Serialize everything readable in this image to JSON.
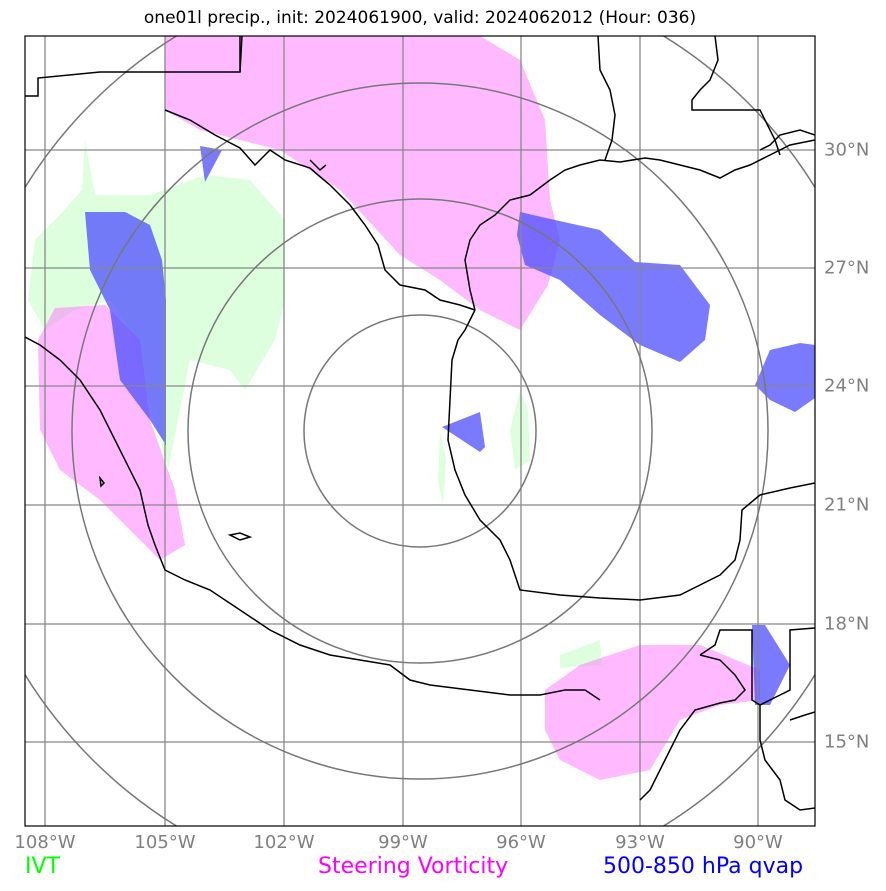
{
  "title": "one01l precip., init: 2024061900, valid: 2024062012 (Hour: 036)",
  "lon_labels": [
    "108°W",
    "105°W",
    "102°W",
    "99°W",
    "96°W",
    "93°W",
    "90°W"
  ],
  "lat_labels": [
    "30°N",
    "27°N",
    "24°N",
    "21°N",
    "18°N",
    "15°N"
  ],
  "legend": {
    "ivt": "IVT",
    "steering": "Steering Vorticity",
    "qvap": "500-850 hPa qvap"
  },
  "colors": {
    "ivt": "#00ff00",
    "steering": "#ff00ff",
    "qvap": "#0000ff",
    "grid": "#808080",
    "coast": "#000000"
  },
  "center": {
    "lon": "99°W",
    "lat": "23°N"
  }
}
